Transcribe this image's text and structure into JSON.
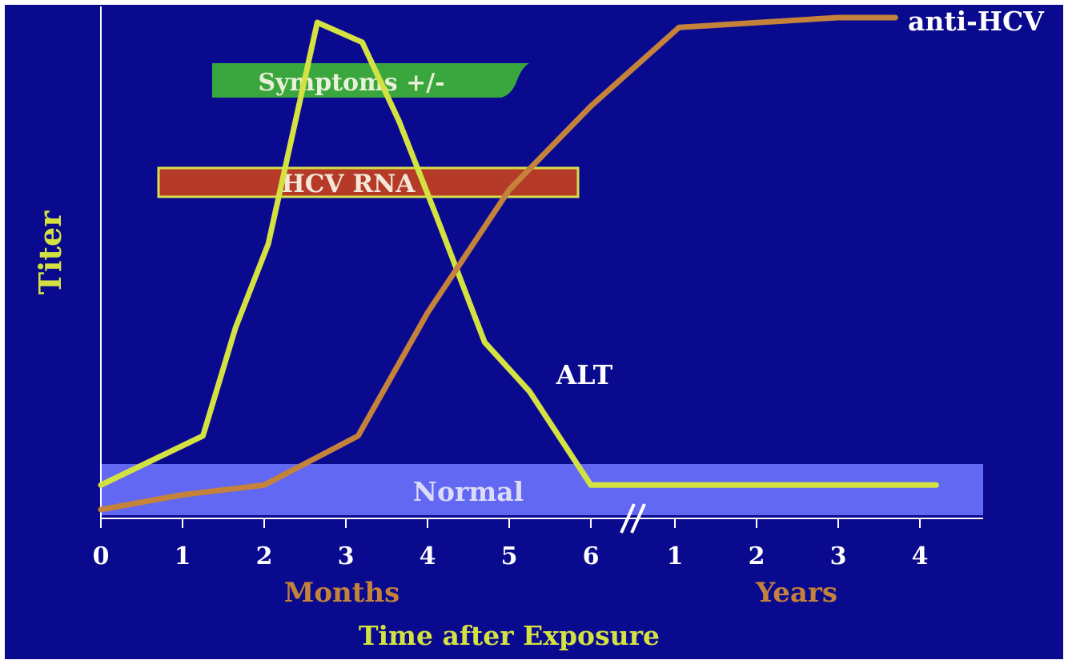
{
  "chart_data": {
    "type": "line",
    "title": "",
    "ylabel": "Titer",
    "xlabel": "Time after Exposure",
    "x_segments": [
      {
        "label": "Months",
        "ticks": [
          "0",
          "1",
          "2",
          "3",
          "4",
          "5",
          "6"
        ]
      },
      {
        "label": "Years",
        "ticks": [
          "1",
          "2",
          "3",
          "4"
        ]
      }
    ],
    "axis_break_symbol": "//",
    "y_unit": "relative titer (0 = baseline, 1 = maximum)",
    "ylim": [
      0,
      1
    ],
    "x_note": "x positions in months (0–6) and years (1–4, plotted after the axis break)",
    "series": [
      {
        "name": "ALT",
        "color": "#d4e241",
        "points": [
          {
            "period": "months",
            "x": 0.0,
            "y": 0.05
          },
          {
            "period": "months",
            "x": 1.25,
            "y": 0.15
          },
          {
            "period": "months",
            "x": 1.65,
            "y": 0.37
          },
          {
            "period": "months",
            "x": 2.05,
            "y": 0.54
          },
          {
            "period": "months",
            "x": 2.65,
            "y": 0.99
          },
          {
            "period": "months",
            "x": 3.2,
            "y": 0.95
          },
          {
            "period": "months",
            "x": 3.65,
            "y": 0.79
          },
          {
            "period": "months",
            "x": 4.1,
            "y": 0.6
          },
          {
            "period": "months",
            "x": 4.7,
            "y": 0.34
          },
          {
            "period": "months",
            "x": 5.25,
            "y": 0.24
          },
          {
            "period": "months",
            "x": 6.0,
            "y": 0.05
          },
          {
            "period": "years",
            "x": 4.2,
            "y": 0.05
          }
        ]
      },
      {
        "name": "anti-HCV",
        "color": "#c4823a",
        "points": [
          {
            "period": "months",
            "x": 0.0,
            "y": 0.0
          },
          {
            "period": "months",
            "x": 1.0,
            "y": 0.03
          },
          {
            "period": "months",
            "x": 2.0,
            "y": 0.05
          },
          {
            "period": "months",
            "x": 3.15,
            "y": 0.15
          },
          {
            "period": "months",
            "x": 4.0,
            "y": 0.4
          },
          {
            "period": "months",
            "x": 5.0,
            "y": 0.65
          },
          {
            "period": "months",
            "x": 6.0,
            "y": 0.82
          },
          {
            "period": "years",
            "x": 1.05,
            "y": 0.98
          },
          {
            "period": "years",
            "x": 3.0,
            "y": 1.0
          },
          {
            "period": "years",
            "x": 3.7,
            "y": 1.0
          }
        ]
      }
    ],
    "bands": [
      {
        "label": "Symptoms +/-",
        "color": "#3aa63e",
        "label_color": "#e9f1d8",
        "x_start_months": 1.35,
        "x_end_months": 5.3
      },
      {
        "label": "HCV RNA",
        "color": "#b63a28",
        "border": "#d6e04a",
        "label_color": "#f3e7d9",
        "x_start_months": 0.75,
        "x_end_months": 5.85
      },
      {
        "label": "Normal",
        "color": "#6368f2",
        "label_color": "#dcdcf8",
        "range": "baseline"
      }
    ],
    "annotations": [
      "ALT",
      "anti-HCV"
    ],
    "colors": {
      "background": "#0a0a8f",
      "axis": "#ffffff",
      "tick_label": "#ffffff",
      "ylabel": "#d4e241",
      "xlabel": "#d4e241",
      "segment_label": "#c4823a"
    }
  }
}
